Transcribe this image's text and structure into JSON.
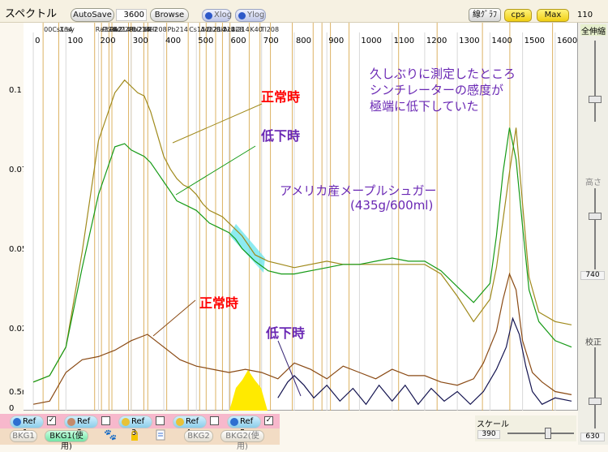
{
  "toolbar": {
    "title": "スペクトル",
    "autosave": "AutoSave",
    "count": "3600",
    "browse": "Browse",
    "xlog": "Xlog",
    "ylog": "Ylog",
    "line_graph": "線ｸﾞﾗﾌ",
    "cps": "cps",
    "max": "Max",
    "right_value": "110"
  },
  "side": {
    "zoom_all": "全伸縮",
    "height": "高さ",
    "height_value": "740",
    "calib": "校正",
    "calib_value": "630"
  },
  "scale": {
    "label": "スケール",
    "value": "390"
  },
  "refs": [
    {
      "label": "Ref 1",
      "checked": true,
      "color": "#2e6fd0"
    },
    {
      "label": "Ref 2",
      "checked": false,
      "color": "#c48a6a"
    },
    {
      "label": "Ref 3",
      "checked": false,
      "color": "#e8c237"
    },
    {
      "label": "Ref 4",
      "checked": false,
      "color": "#e8c237"
    },
    {
      "label": "Ref 5",
      "checked": true,
      "color": "#2e6fd0"
    }
  ],
  "bottom": {
    "bkg1": "BKG1",
    "bkg1_use": "BKG1(使用)",
    "bkg2": "BKG2",
    "bkg2_use": "BKG2(使用)"
  },
  "icons": [
    "paw-icon",
    "lock-icon",
    "list-icon"
  ],
  "annotations": {
    "note_line1": "久しぶりに測定したところ",
    "note_line2": "シンチレーターの感度が",
    "note_line3": "極端に低下していた",
    "normal_top": "正常時",
    "low_top": "低下時",
    "sample": "アメリカ産メープルシュガー",
    "sample_amount": "(435g/600ml)",
    "normal_bottom": "正常時",
    "low_bottom": "低下時"
  },
  "colors": {
    "olive": "#a08a1c",
    "green": "#169a16",
    "brown": "#8a4a14",
    "navy": "#141450",
    "isotope_line": "#d6a548",
    "red": "#ff0000",
    "purple": "#6a28b4"
  },
  "chart_data": {
    "type": "line",
    "xlim": [
      -30,
      1670
    ],
    "ylim": [
      0,
      0.12
    ],
    "x_ticks": [
      0,
      100,
      200,
      300,
      400,
      500,
      600,
      700,
      800,
      900,
      1000,
      1100,
      1200,
      1300,
      1400,
      1500,
      1600
    ],
    "y_ticks": [
      {
        "v": 0.1,
        "label": "0.1"
      },
      {
        "v": 0.075,
        "label": "0.075"
      },
      {
        "v": 0.05,
        "label": "0.05"
      },
      {
        "v": 0.025,
        "label": "0.025"
      },
      {
        "v": 0.005,
        "label": "0.5m"
      },
      {
        "v": 0,
        "label": "0"
      }
    ],
    "isotope_labels": [
      "00Cs134",
      "Xray",
      "Ra226",
      "Pb212",
      "Pb214",
      "Ac228",
      "Pb214",
      "Bi214",
      "Be7",
      "Tl208",
      "Pb214",
      "Cs137",
      "Ac228",
      "Bi214",
      "Bi214",
      "Ac228",
      "Bi214",
      "K40",
      "Tl208"
    ],
    "isotope_lines": [
      30,
      78,
      188,
      209,
      232,
      241,
      292,
      300,
      339,
      351,
      409,
      475,
      510,
      530,
      559,
      580,
      603,
      662,
      695,
      727,
      794,
      858,
      885,
      911,
      968,
      1120,
      1238,
      1377,
      1461,
      1592
    ],
    "series": [
      {
        "color": "olive",
        "x": [
          0,
          50,
          100,
          150,
          200,
          250,
          280,
          300,
          320,
          340,
          360,
          380,
          400,
          420,
          440,
          460,
          480,
          500,
          520,
          540,
          560,
          580,
          600,
          620,
          640,
          680,
          720,
          760,
          800,
          850,
          900,
          950,
          1000,
          1050,
          1100,
          1150,
          1200,
          1250,
          1300,
          1350,
          1400,
          1420,
          1440,
          1460,
          1480,
          1500,
          1520,
          1550,
          1600,
          1650
        ],
        "y": [
          0.009,
          0.011,
          0.02,
          0.05,
          0.085,
          0.1,
          0.104,
          0.102,
          0.1,
          0.099,
          0.094,
          0.087,
          0.08,
          0.076,
          0.073,
          0.071,
          0.07,
          0.068,
          0.065,
          0.063,
          0.062,
          0.061,
          0.059,
          0.057,
          0.055,
          0.049,
          0.047,
          0.046,
          0.045,
          0.046,
          0.047,
          0.046,
          0.046,
          0.046,
          0.046,
          0.046,
          0.046,
          0.043,
          0.036,
          0.028,
          0.035,
          0.045,
          0.06,
          0.075,
          0.089,
          0.065,
          0.042,
          0.031,
          0.028,
          0.027
        ]
      },
      {
        "color": "green",
        "x": [
          0,
          50,
          100,
          150,
          200,
          250,
          280,
          300,
          320,
          340,
          360,
          380,
          400,
          420,
          440,
          460,
          480,
          500,
          520,
          540,
          560,
          580,
          600,
          620,
          640,
          680,
          720,
          760,
          800,
          850,
          900,
          950,
          1000,
          1050,
          1100,
          1150,
          1200,
          1250,
          1300,
          1350,
          1400,
          1420,
          1440,
          1460,
          1480,
          1500,
          1520,
          1550,
          1600,
          1650
        ],
        "y": [
          0.009,
          0.011,
          0.02,
          0.045,
          0.068,
          0.083,
          0.084,
          0.082,
          0.081,
          0.08,
          0.078,
          0.075,
          0.072,
          0.069,
          0.066,
          0.065,
          0.064,
          0.063,
          0.061,
          0.059,
          0.058,
          0.057,
          0.056,
          0.054,
          0.051,
          0.047,
          0.044,
          0.043,
          0.043,
          0.044,
          0.045,
          0.046,
          0.046,
          0.047,
          0.048,
          0.047,
          0.047,
          0.044,
          0.039,
          0.034,
          0.04,
          0.055,
          0.075,
          0.089,
          0.079,
          0.058,
          0.038,
          0.028,
          0.022,
          0.02
        ]
      },
      {
        "color": "brown",
        "x": [
          0,
          50,
          100,
          150,
          200,
          250,
          300,
          350,
          400,
          450,
          500,
          550,
          600,
          650,
          700,
          750,
          800,
          850,
          900,
          950,
          1000,
          1050,
          1100,
          1150,
          1200,
          1250,
          1300,
          1350,
          1380,
          1420,
          1440,
          1460,
          1480,
          1500,
          1530,
          1560,
          1600,
          1650
        ],
        "y": [
          0.002,
          0.003,
          0.012,
          0.016,
          0.017,
          0.019,
          0.022,
          0.024,
          0.02,
          0.016,
          0.014,
          0.013,
          0.012,
          0.013,
          0.012,
          0.01,
          0.015,
          0.013,
          0.01,
          0.014,
          0.012,
          0.01,
          0.013,
          0.011,
          0.011,
          0.009,
          0.008,
          0.01,
          0.015,
          0.025,
          0.035,
          0.043,
          0.038,
          0.022,
          0.012,
          0.009,
          0.006,
          0.005
        ]
      },
      {
        "color": "navy",
        "x": [
          750,
          780,
          800,
          830,
          860,
          900,
          940,
          980,
          1020,
          1060,
          1100,
          1140,
          1180,
          1220,
          1260,
          1300,
          1340,
          1380,
          1420,
          1450,
          1470,
          1490,
          1510,
          1530,
          1560,
          1600,
          1650
        ],
        "y": [
          0.004,
          0.009,
          0.011,
          0.008,
          0.004,
          0.008,
          0.003,
          0.007,
          0.002,
          0.008,
          0.003,
          0.008,
          0.002,
          0.007,
          0.003,
          0.006,
          0.002,
          0.006,
          0.013,
          0.02,
          0.029,
          0.024,
          0.014,
          0.006,
          0.002,
          0.004,
          0.003
        ]
      }
    ]
  }
}
